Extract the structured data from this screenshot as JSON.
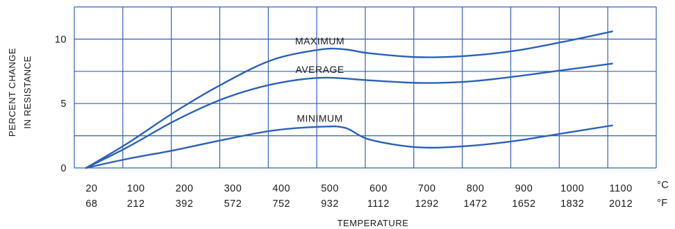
{
  "chart_data": {
    "type": "line",
    "title": "",
    "ylabel_lines": [
      "PERCENT CHANGE",
      "IN RESISTANCE"
    ],
    "xlabel": "TEMPERATURE",
    "unit_c": "°C",
    "unit_f": "°F",
    "x_celsius": [
      20,
      100,
      200,
      300,
      400,
      500,
      600,
      700,
      800,
      900,
      1000,
      1100
    ],
    "x_fahrenheit": [
      68,
      212,
      392,
      572,
      752,
      932,
      1112,
      1292,
      1472,
      1652,
      1832,
      2012
    ],
    "yticks": [
      0,
      5,
      10
    ],
    "ylim": [
      0,
      12.5
    ],
    "grid": true,
    "series": [
      {
        "name": "MAXIMUM",
        "points": [
          [
            20,
            0
          ],
          [
            100,
            1.9
          ],
          [
            200,
            4.4
          ],
          [
            300,
            6.6
          ],
          [
            400,
            8.4
          ],
          [
            500,
            9.2
          ],
          [
            550,
            9.2
          ],
          [
            600,
            8.9
          ],
          [
            700,
            8.6
          ],
          [
            800,
            8.7
          ],
          [
            900,
            9.1
          ],
          [
            1000,
            9.8
          ],
          [
            1100,
            10.6
          ]
        ]
      },
      {
        "name": "AVERAGE",
        "points": [
          [
            20,
            0
          ],
          [
            100,
            1.6
          ],
          [
            200,
            3.7
          ],
          [
            300,
            5.4
          ],
          [
            400,
            6.5
          ],
          [
            500,
            7.0
          ],
          [
            600,
            6.8
          ],
          [
            700,
            6.6
          ],
          [
            800,
            6.7
          ],
          [
            900,
            7.1
          ],
          [
            1000,
            7.6
          ],
          [
            1100,
            8.1
          ]
        ]
      },
      {
        "name": "MINIMUM",
        "points": [
          [
            20,
            0
          ],
          [
            100,
            0.7
          ],
          [
            200,
            1.4
          ],
          [
            300,
            2.2
          ],
          [
            400,
            2.9
          ],
          [
            500,
            3.2
          ],
          [
            550,
            3.1
          ],
          [
            600,
            2.2
          ],
          [
            700,
            1.6
          ],
          [
            800,
            1.7
          ],
          [
            900,
            2.1
          ],
          [
            1000,
            2.7
          ],
          [
            1100,
            3.3
          ]
        ]
      }
    ]
  }
}
